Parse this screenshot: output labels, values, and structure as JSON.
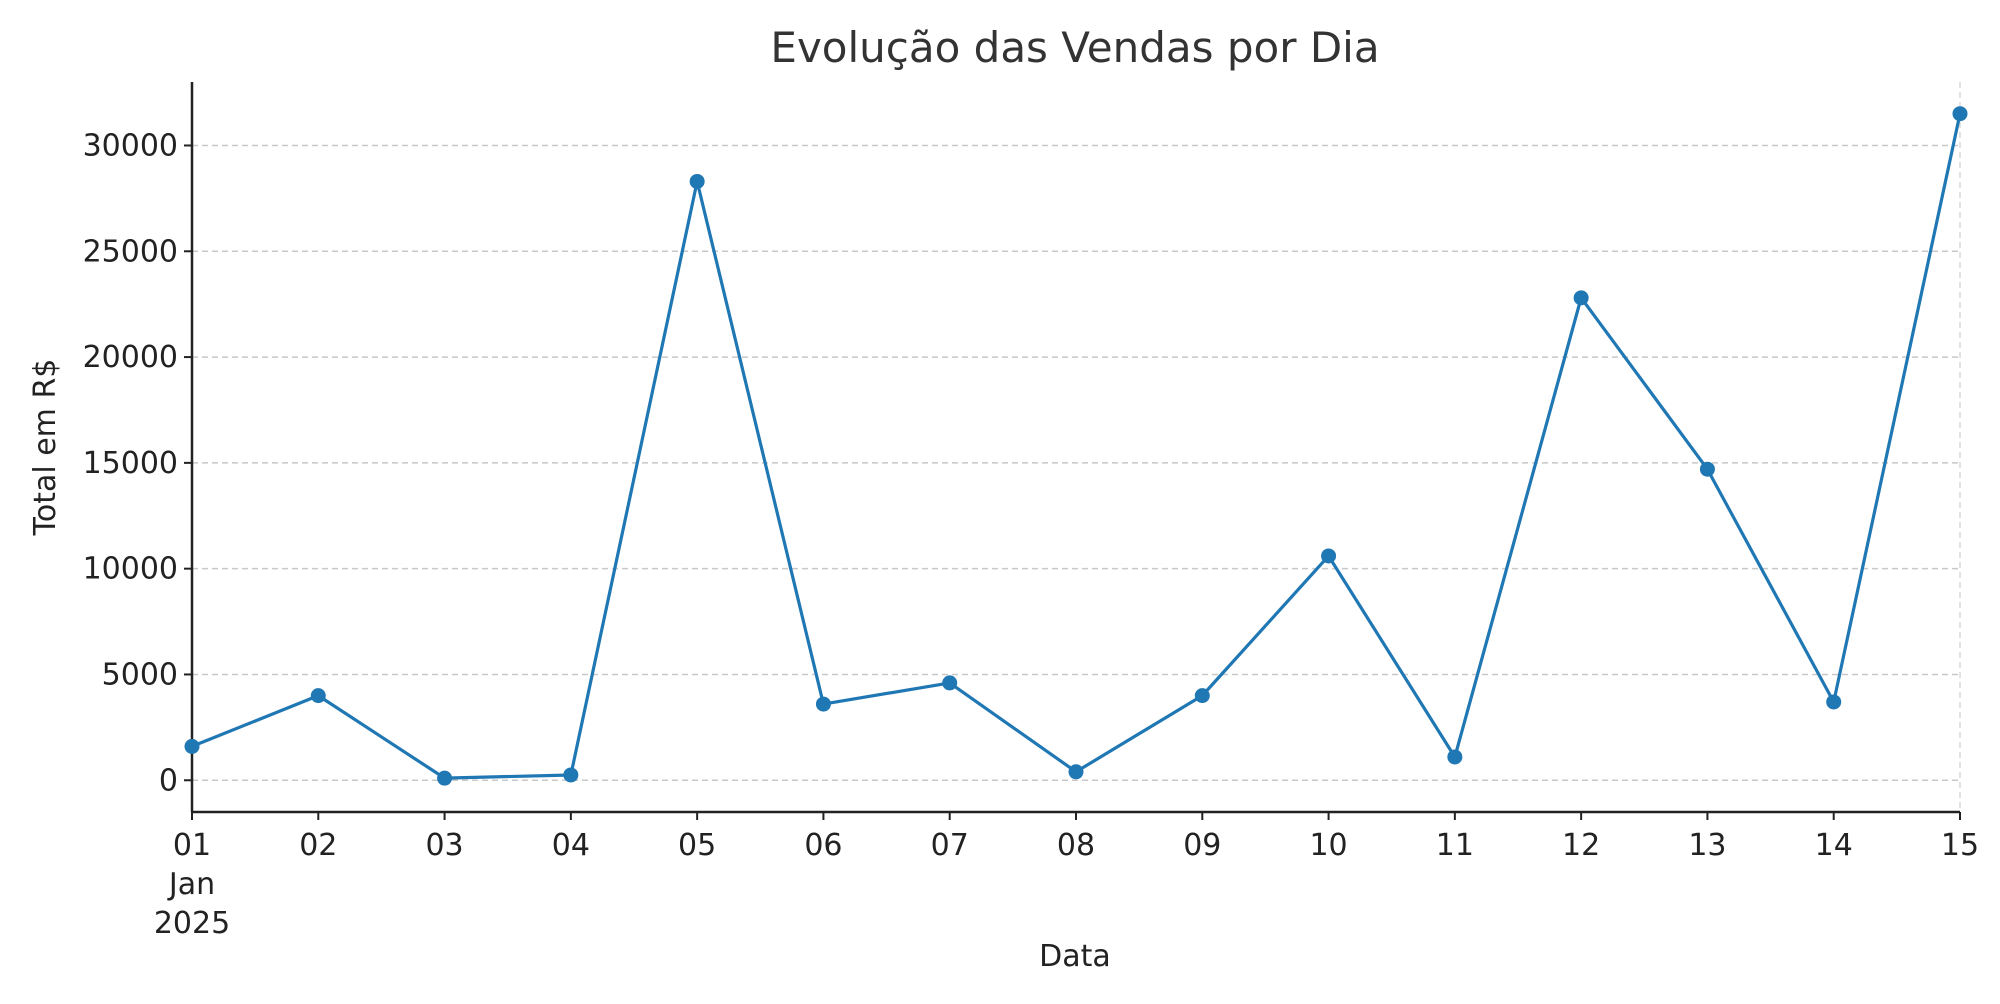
{
  "chart_data": {
    "type": "line",
    "title": "Evolução das Vendas por Dia",
    "xlabel": "Data",
    "ylabel": "Total em R$",
    "x": [
      "2025-01-01",
      "2025-01-02",
      "2025-01-03",
      "2025-01-04",
      "2025-01-05",
      "2025-01-06",
      "2025-01-07",
      "2025-01-08",
      "2025-01-09",
      "2025-01-10",
      "2025-01-11",
      "2025-01-12",
      "2025-01-13",
      "2025-01-14",
      "2025-01-15"
    ],
    "x_tick_labels": [
      "01",
      "02",
      "03",
      "04",
      "05",
      "06",
      "07",
      "08",
      "09",
      "10",
      "11",
      "12",
      "13",
      "14",
      "15"
    ],
    "x_tick_sublabels": [
      "Jan",
      "2025"
    ],
    "y_ticks": [
      0,
      5000,
      10000,
      15000,
      20000,
      25000,
      30000
    ],
    "ylim": [
      -1500,
      33000
    ],
    "grid": true,
    "series": [
      {
        "color": "#1f77b4",
        "values": [
          1600,
          4000,
          100,
          250,
          28300,
          3600,
          4600,
          400,
          4000,
          10600,
          1100,
          22800,
          14700,
          3700,
          31500
        ]
      }
    ]
  }
}
